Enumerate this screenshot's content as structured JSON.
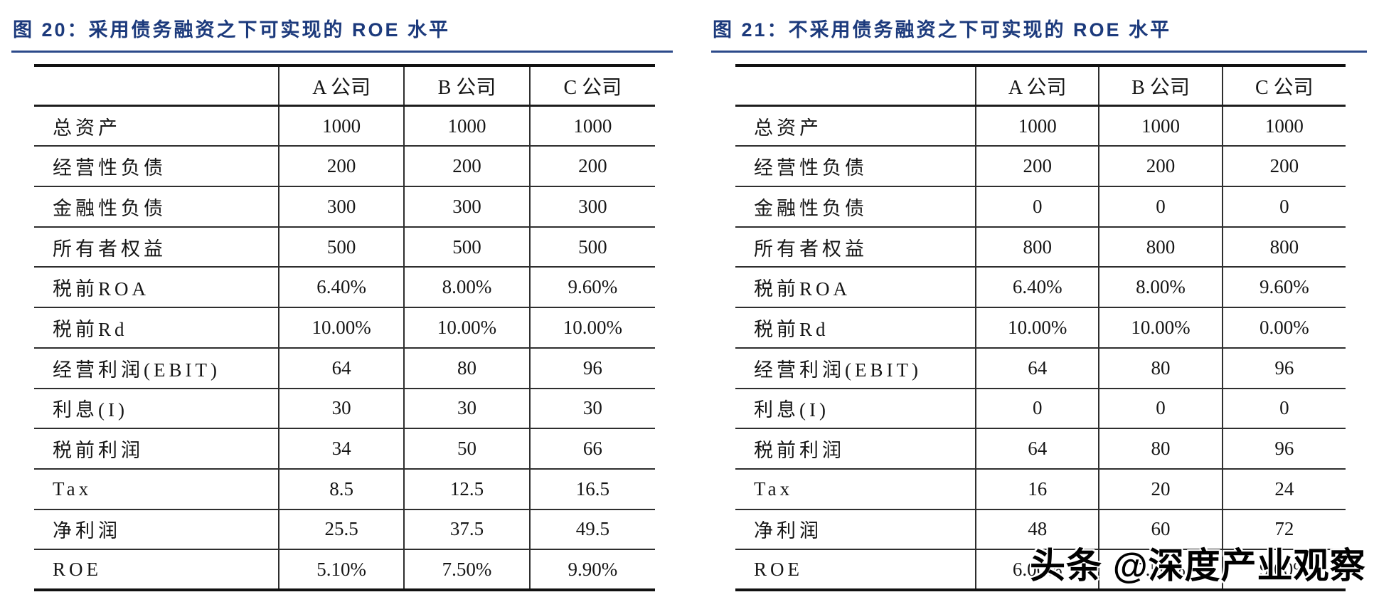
{
  "accent_color": "#1c3a7c",
  "figures": [
    {
      "title": "图 20：采用债务融资之下可实现的 ROE 水平",
      "table": {
        "header": [
          "",
          "A 公司",
          "B 公司",
          "C 公司"
        ],
        "rows": [
          [
            "总资产",
            "1000",
            "1000",
            "1000"
          ],
          [
            "经营性负债",
            "200",
            "200",
            "200"
          ],
          [
            "金融性负债",
            "300",
            "300",
            "300"
          ],
          [
            "所有者权益",
            "500",
            "500",
            "500"
          ],
          [
            "税前ROA",
            "6.40%",
            "8.00%",
            "9.60%"
          ],
          [
            "税前Rd",
            "10.00%",
            "10.00%",
            "10.00%"
          ],
          [
            "经营利润(EBIT)",
            "64",
            "80",
            "96"
          ],
          [
            "利息(I)",
            "30",
            "30",
            "30"
          ],
          [
            "税前利润",
            "34",
            "50",
            "66"
          ],
          [
            "Tax",
            "8.5",
            "12.5",
            "16.5"
          ],
          [
            "净利润",
            "25.5",
            "37.5",
            "49.5"
          ],
          [
            "ROE",
            "5.10%",
            "7.50%",
            "9.90%"
          ]
        ]
      }
    },
    {
      "title": "图 21：不采用债务融资之下可实现的 ROE 水平",
      "table": {
        "header": [
          "",
          "A 公司",
          "B 公司",
          "C 公司"
        ],
        "rows": [
          [
            "总资产",
            "1000",
            "1000",
            "1000"
          ],
          [
            "经营性负债",
            "200",
            "200",
            "200"
          ],
          [
            "金融性负债",
            "0",
            "0",
            "0"
          ],
          [
            "所有者权益",
            "800",
            "800",
            "800"
          ],
          [
            "税前ROA",
            "6.40%",
            "8.00%",
            "9.60%"
          ],
          [
            "税前Rd",
            "10.00%",
            "10.00%",
            "0.00%"
          ],
          [
            "经营利润(EBIT)",
            "64",
            "80",
            "96"
          ],
          [
            "利息(I)",
            "0",
            "0",
            "0"
          ],
          [
            "税前利润",
            "64",
            "80",
            "96"
          ],
          [
            "Tax",
            "16",
            "20",
            "24"
          ],
          [
            "净利润",
            "48",
            "60",
            "72"
          ],
          [
            "ROE",
            "6.00%",
            "7.50%",
            "9.00%"
          ]
        ]
      }
    }
  ],
  "watermark": "头条 @深度产业观察"
}
